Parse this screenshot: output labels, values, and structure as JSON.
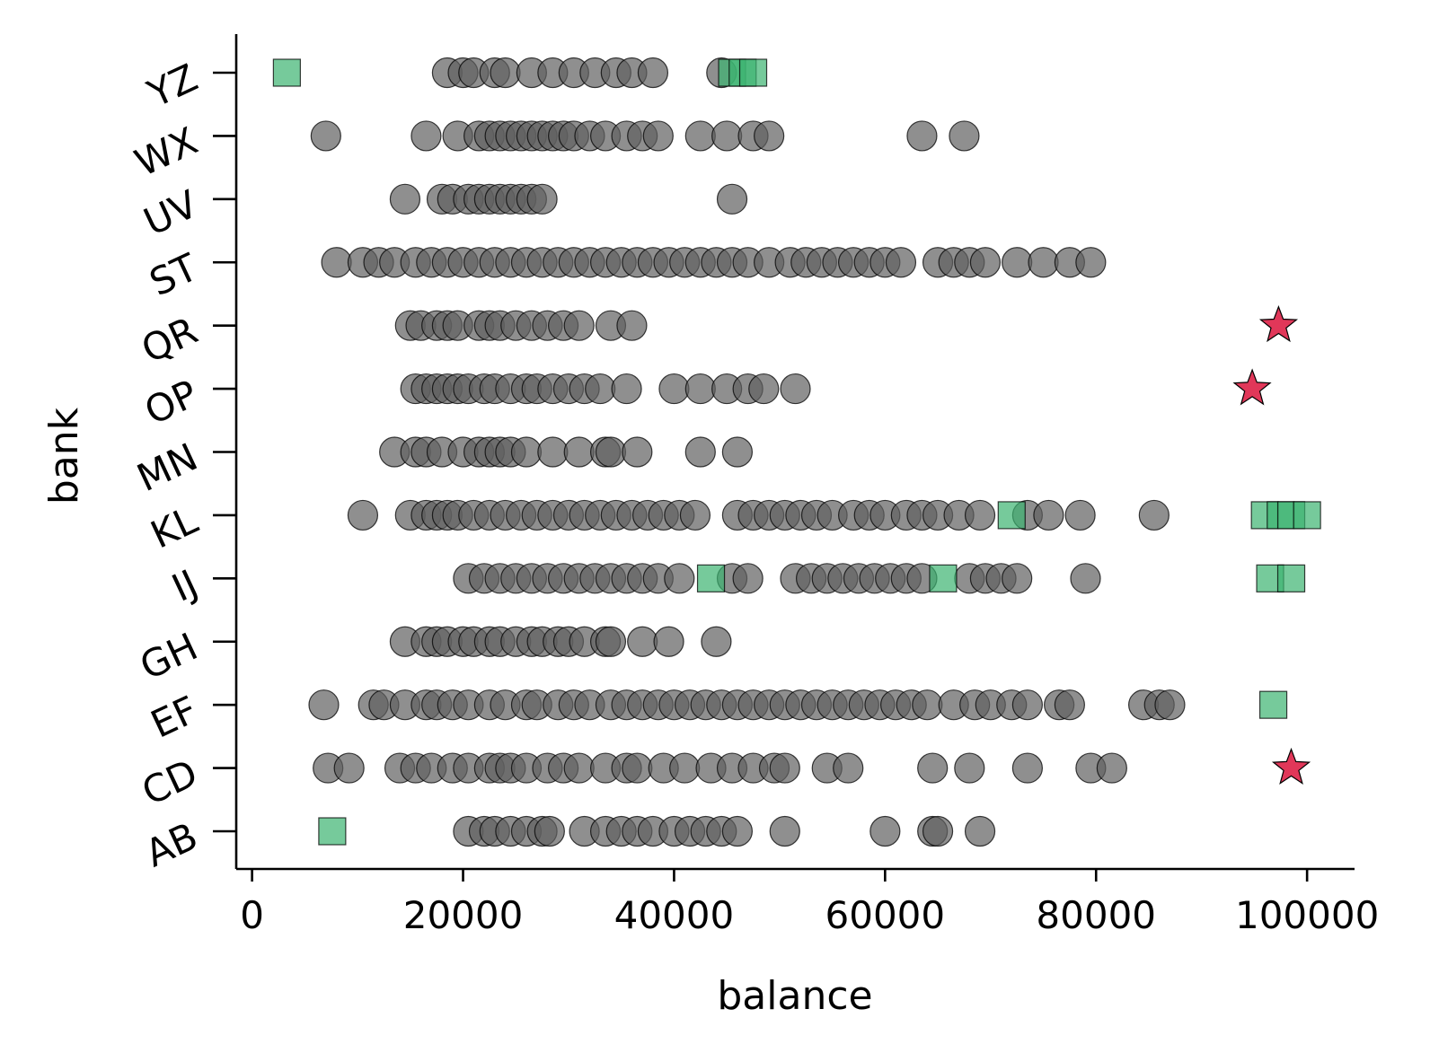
{
  "chart_data": {
    "type": "scatter",
    "title": "",
    "xlabel": "balance",
    "ylabel": "bank",
    "xlim": [
      -1500,
      104500
    ],
    "x_ticks": [
      0,
      20000,
      40000,
      60000,
      80000,
      100000
    ],
    "x_tick_labels": [
      "0",
      "20000",
      "40000",
      "60000",
      "80000",
      "100000"
    ],
    "categories": [
      "AB",
      "CD",
      "EF",
      "GH",
      "IJ",
      "KL",
      "MN",
      "OP",
      "QR",
      "ST",
      "UV",
      "WX",
      "YZ"
    ],
    "grid": false,
    "legend": "none",
    "colors": {
      "normal": "#606060",
      "square": "#3cb371",
      "star": "#dc143c",
      "edge": "#000000"
    },
    "series": [
      {
        "marker": "circle",
        "color": "#606060",
        "points": {
          "AB": [
            20500,
            22000,
            23000,
            24500,
            26000,
            27500,
            28200,
            31500,
            33500,
            35000,
            36500,
            38000,
            40000,
            41500,
            43000,
            44500,
            46000,
            50500,
            60000,
            64500,
            65000,
            69000
          ],
          "CD": [
            7200,
            9200,
            14000,
            15500,
            17000,
            19000,
            20500,
            22500,
            23500,
            24500,
            26000,
            28000,
            29500,
            31000,
            33500,
            35500,
            36500,
            39000,
            41000,
            43500,
            45500,
            47500,
            49500,
            50500,
            54500,
            56500,
            64500,
            68000,
            73500,
            79500,
            81500
          ],
          "EF": [
            6800,
            11500,
            12500,
            14500,
            16500,
            17500,
            19000,
            20500,
            22500,
            24000,
            26000,
            27000,
            29000,
            30500,
            32000,
            34000,
            35500,
            37000,
            38500,
            40000,
            41500,
            43000,
            44500,
            46000,
            47500,
            49000,
            50500,
            52000,
            53500,
            55000,
            56500,
            58000,
            59500,
            61000,
            62500,
            64000,
            66500,
            68500,
            70000,
            72000,
            73500,
            76500,
            77500,
            84500,
            86000,
            87000
          ],
          "GH": [
            14500,
            16500,
            17500,
            18500,
            20000,
            21000,
            22500,
            23500,
            25000,
            26500,
            27500,
            29000,
            30000,
            31500,
            33500,
            34000,
            37000,
            39500,
            44000
          ],
          "IJ": [
            20500,
            22000,
            23500,
            25000,
            26500,
            28000,
            29500,
            31000,
            32500,
            34000,
            35500,
            37000,
            38500,
            40500,
            45500,
            47000,
            51500,
            53000,
            54500,
            56000,
            57500,
            59000,
            60500,
            62000,
            63500,
            68000,
            69500,
            71000,
            72500,
            79000
          ],
          "KL": [
            10500,
            15000,
            16500,
            17500,
            18500,
            19500,
            21000,
            22500,
            24000,
            25500,
            27000,
            28500,
            30000,
            31500,
            33000,
            34500,
            36000,
            37500,
            39000,
            40500,
            42000,
            46000,
            47500,
            49000,
            50500,
            52000,
            53500,
            55000,
            57000,
            58500,
            60000,
            62000,
            63500,
            65000,
            67000,
            69000,
            73500,
            75500,
            78500,
            85500
          ],
          "MN": [
            13500,
            15500,
            16500,
            18000,
            20000,
            21500,
            22500,
            23500,
            24500,
            26000,
            28500,
            31000,
            33500,
            34000,
            36500,
            42500,
            46000
          ],
          "OP": [
            15500,
            16500,
            17500,
            18500,
            19500,
            20500,
            22000,
            23000,
            24500,
            26000,
            27000,
            28500,
            30000,
            31500,
            33000,
            35500,
            40000,
            42500,
            45000,
            47000,
            48500,
            51500
          ],
          "QR": [
            15000,
            16000,
            17500,
            18500,
            19500,
            21500,
            22500,
            23500,
            25000,
            26500,
            28000,
            29500,
            31000,
            34000,
            36000
          ],
          "ST": [
            8000,
            10500,
            12000,
            13500,
            15500,
            17000,
            18500,
            20000,
            21500,
            23000,
            24500,
            26000,
            27500,
            29000,
            30500,
            32000,
            33500,
            35000,
            36500,
            38000,
            39500,
            41000,
            42500,
            44000,
            45500,
            47000,
            49000,
            51000,
            52500,
            54000,
            55500,
            57000,
            58500,
            60000,
            61500,
            65000,
            66500,
            68000,
            69500,
            72500,
            75000,
            77500,
            79500
          ],
          "UV": [
            14500,
            18000,
            19000,
            20500,
            21500,
            22500,
            23500,
            24500,
            25500,
            26500,
            27500,
            45500
          ],
          "WX": [
            7000,
            16500,
            19500,
            21500,
            22500,
            23500,
            24500,
            25500,
            26500,
            27500,
            28500,
            29500,
            30500,
            32000,
            33500,
            35500,
            37000,
            38500,
            42500,
            45000,
            47500,
            49000,
            63500,
            67500
          ],
          "YZ": [
            18500,
            20000,
            21000,
            23000,
            24000,
            26500,
            28500,
            30500,
            32500,
            34500,
            36000,
            38000,
            44500
          ]
        }
      },
      {
        "marker": "square",
        "color": "#3cb371",
        "points": {
          "AB": [
            7600
          ],
          "EF": [
            96800
          ],
          "IJ": [
            43500,
            65500,
            96500,
            98500
          ],
          "KL": [
            72000,
            96000,
            97500,
            98500,
            100000
          ],
          "YZ": [
            3300,
            45500,
            46500,
            47500
          ]
        }
      },
      {
        "marker": "star",
        "color": "#dc143c",
        "points": {
          "CD": [
            98500
          ],
          "OP": [
            94800
          ],
          "QR": [
            97300
          ]
        }
      }
    ]
  }
}
